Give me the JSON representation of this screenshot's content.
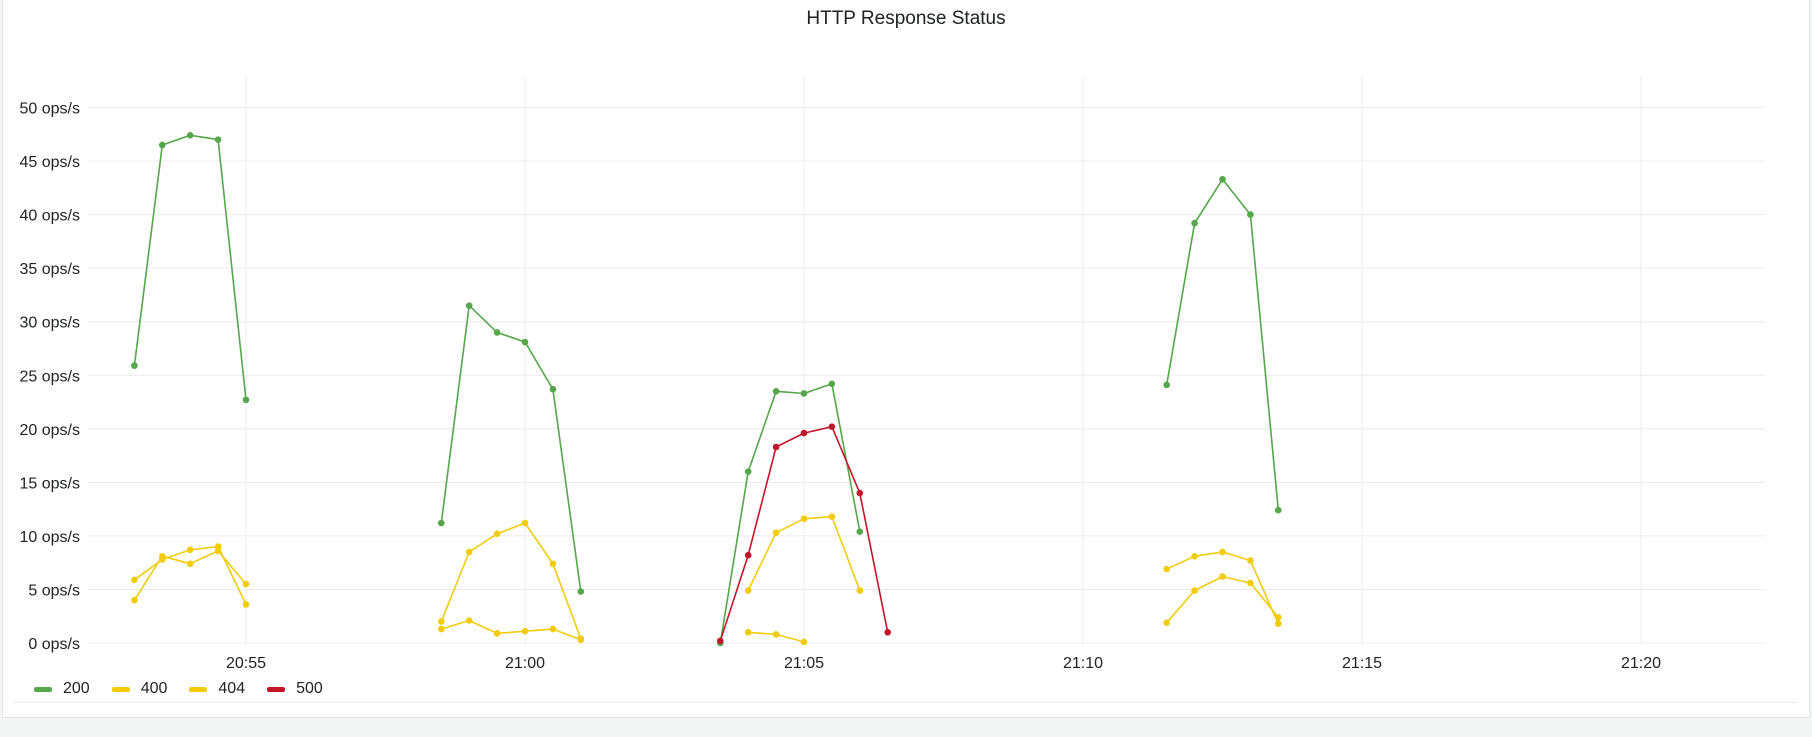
{
  "panel": {
    "title": "HTTP Response Status"
  },
  "chart_data": {
    "type": "line",
    "title": "HTTP Response Status",
    "xlabel": "",
    "ylabel": "",
    "x_unit": "minutes",
    "x_ticks": [
      {
        "t": "20:55",
        "label": "20:55"
      },
      {
        "t": "21:00",
        "label": "21:00"
      },
      {
        "t": "21:05",
        "label": "21:05"
      },
      {
        "t": "21:10",
        "label": "21:10"
      },
      {
        "t": "21:15",
        "label": "21:15"
      },
      {
        "t": "21:20",
        "label": "21:20"
      }
    ],
    "xlim": [
      "20:52",
      "21:22"
    ],
    "ylim": [
      0,
      50
    ],
    "y_ticks": [
      {
        "v": 0,
        "label": "0 ops/s"
      },
      {
        "v": 5,
        "label": "5 ops/s"
      },
      {
        "v": 10,
        "label": "10 ops/s"
      },
      {
        "v": 15,
        "label": "15 ops/s"
      },
      {
        "v": 20,
        "label": "20 ops/s"
      },
      {
        "v": 25,
        "label": "25 ops/s"
      },
      {
        "v": 30,
        "label": "30 ops/s"
      },
      {
        "v": 35,
        "label": "35 ops/s"
      },
      {
        "v": 40,
        "label": "40 ops/s"
      },
      {
        "v": 45,
        "label": "45 ops/s"
      },
      {
        "v": 50,
        "label": "50 ops/s"
      }
    ],
    "grid": true,
    "legend_position": "bottom-left",
    "series": [
      {
        "name": "200",
        "color": "#56a64b",
        "segments": [
          [
            [
              "20:53",
              25.9
            ],
            [
              "20:53:30",
              46.5
            ],
            [
              "20:54",
              47.4
            ],
            [
              "20:54:30",
              47.0
            ],
            [
              "20:55",
              22.7
            ]
          ],
          [
            [
              "20:58:30",
              11.2
            ],
            [
              "20:59",
              31.5
            ],
            [
              "20:59:30",
              29.0
            ],
            [
              "21:00",
              28.1
            ],
            [
              "21:00:30",
              23.7
            ],
            [
              "21:01",
              4.8
            ]
          ],
          [
            [
              "21:03:30",
              0.0
            ],
            [
              "21:04",
              16.0
            ],
            [
              "21:04:30",
              23.5
            ],
            [
              "21:05",
              23.3
            ],
            [
              "21:05:30",
              24.2
            ],
            [
              "21:06",
              10.4
            ]
          ],
          [
            [
              "21:11:30",
              24.1
            ],
            [
              "21:12",
              39.2
            ],
            [
              "21:12:30",
              43.3
            ],
            [
              "21:13",
              40.0
            ],
            [
              "21:13:30",
              12.4
            ]
          ]
        ]
      },
      {
        "name": "400",
        "color": "#f2cc0c",
        "segments": [
          [
            [
              "20:53",
              5.9
            ],
            [
              "20:53:30",
              7.8
            ],
            [
              "20:54",
              8.7
            ],
            [
              "20:54:30",
              9.0
            ],
            [
              "20:55",
              3.6
            ]
          ],
          [
            [
              "20:58:30",
              2.0
            ],
            [
              "20:59",
              8.5
            ],
            [
              "20:59:30",
              10.2
            ],
            [
              "21:00",
              11.2
            ],
            [
              "21:00:30",
              7.4
            ],
            [
              "21:01",
              0.4
            ]
          ],
          [
            [
              "21:04",
              4.9
            ],
            [
              "21:04:30",
              10.3
            ],
            [
              "21:05",
              11.6
            ],
            [
              "21:05:30",
              11.8
            ],
            [
              "21:06",
              4.9
            ]
          ],
          [
            [
              "21:11:30",
              6.9
            ],
            [
              "21:12",
              8.1
            ],
            [
              "21:12:30",
              8.5
            ],
            [
              "21:13",
              7.7
            ],
            [
              "21:13:30",
              1.8
            ]
          ]
        ]
      },
      {
        "name": "404",
        "color": "#f2cc0c",
        "segments": [
          [
            [
              "20:53",
              4.0
            ],
            [
              "20:53:30",
              8.1
            ],
            [
              "20:54",
              7.4
            ],
            [
              "20:54:30",
              8.6
            ],
            [
              "20:55",
              5.5
            ]
          ],
          [
            [
              "20:58:30",
              1.3
            ],
            [
              "20:59",
              2.1
            ],
            [
              "20:59:30",
              0.9
            ],
            [
              "21:00",
              1.1
            ],
            [
              "21:00:30",
              1.3
            ],
            [
              "21:01",
              0.3
            ]
          ],
          [
            [
              "21:04",
              1.0
            ],
            [
              "21:04:30",
              0.8
            ],
            [
              "21:05",
              0.1
            ]
          ],
          [
            [
              "21:11:30",
              1.9
            ],
            [
              "21:12",
              4.9
            ],
            [
              "21:12:30",
              6.2
            ],
            [
              "21:13",
              5.6
            ],
            [
              "21:13:30",
              2.4
            ]
          ]
        ]
      },
      {
        "name": "500",
        "color": "#c4162a",
        "segments": [
          [
            [
              "21:03:30",
              0.2
            ],
            [
              "21:04",
              8.2
            ],
            [
              "21:04:30",
              18.3
            ],
            [
              "21:05",
              19.6
            ],
            [
              "21:05:30",
              20.2
            ],
            [
              "21:06",
              14.0
            ],
            [
              "21:06:30",
              1.0
            ]
          ]
        ]
      }
    ]
  }
}
